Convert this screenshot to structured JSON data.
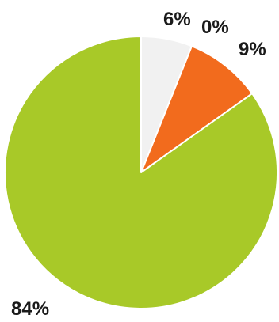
{
  "chart_data": {
    "type": "pie",
    "title": "",
    "start_angle_deg": 0,
    "direction": "clockwise",
    "slices": [
      {
        "label": "6%",
        "value": 6,
        "color": "#f1f1f1"
      },
      {
        "label": "0%",
        "value": 0,
        "color": "#f1f1f1"
      },
      {
        "label": "9%",
        "value": 9,
        "color": "#f26b1d"
      },
      {
        "label": "84%",
        "value": 84,
        "color": "#a8c928"
      }
    ],
    "slice_border_color": "#ffffff"
  }
}
